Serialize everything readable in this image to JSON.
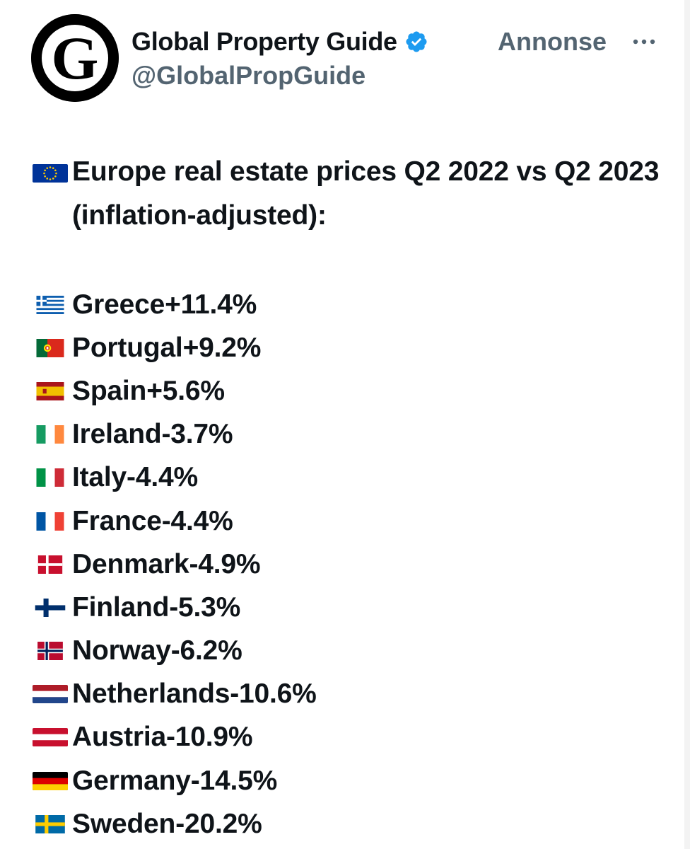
{
  "account": {
    "name": "Global Property Guide",
    "handle": "@GlobalPropGuide",
    "ad_label": "Annonse",
    "avatar_letter": "G",
    "verified_icon": "verified-badge-icon",
    "more_icon": "more-dots-icon"
  },
  "colors": {
    "text": "#0f1419",
    "secondary": "#536471",
    "verified": "#1d9bf0",
    "avatar_bg": "#000000"
  },
  "tweet": {
    "headline_flag": "eu",
    "headline": "Europe real estate prices Q2 2022 vs Q2 2023 (inflation-adjusted):",
    "items": [
      {
        "flag": "gr",
        "country": "Greece",
        "change": "+11.4%"
      },
      {
        "flag": "pt",
        "country": "Portugal",
        "change": "+9.2%"
      },
      {
        "flag": "es",
        "country": "Spain",
        "change": "+5.6%"
      },
      {
        "flag": "ie",
        "country": "Ireland",
        "change": "-3.7%"
      },
      {
        "flag": "it",
        "country": "Italy",
        "change": "-4.4%"
      },
      {
        "flag": "fr",
        "country": "France",
        "change": "-4.4%"
      },
      {
        "flag": "dk",
        "country": "Denmark",
        "change": "-4.9%"
      },
      {
        "flag": "fi",
        "country": "Finland",
        "change": "-5.3%"
      },
      {
        "flag": "no",
        "country": "Norway",
        "change": "-6.2%"
      },
      {
        "flag": "nl",
        "country": "Netherlands",
        "change": "-10.6%"
      },
      {
        "flag": "at",
        "country": "Austria",
        "change": "-10.9%"
      },
      {
        "flag": "de",
        "country": "Germany",
        "change": "-14.5%"
      },
      {
        "flag": "se",
        "country": "Sweden",
        "change": "-20.2%"
      }
    ]
  }
}
